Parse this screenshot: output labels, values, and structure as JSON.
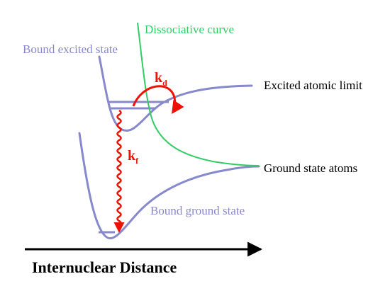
{
  "labels": {
    "dissociative_curve": "Dissociative curve",
    "bound_excited_state": "Bound excited state",
    "excited_atomic_limit": "Excited atomic limit",
    "ground_state_atoms": "Ground state atoms",
    "bound_ground_state": "Bound ground state",
    "axis": "Internuclear Distance"
  },
  "rates": {
    "kd": {
      "symbol": "k",
      "subscript": "d"
    },
    "kf": {
      "symbol": "k",
      "subscript": "f"
    }
  },
  "colors": {
    "bound_curves": "#8888cc",
    "dissociative": "#33cc66",
    "arrows": "#ee1100",
    "text": "#000000",
    "axis": "#000000"
  }
}
